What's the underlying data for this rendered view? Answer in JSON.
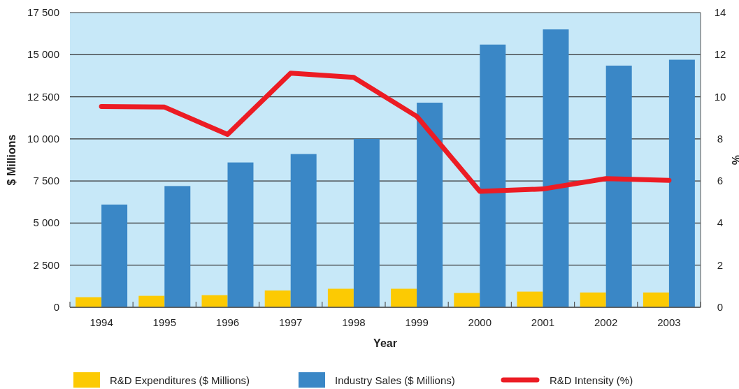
{
  "chart_data": {
    "type": "bar",
    "xlabel": "Year",
    "ylabel": "$ Millions",
    "y2label": "%",
    "categories": [
      "1994",
      "1995",
      "1996",
      "1997",
      "1998",
      "1999",
      "2000",
      "2001",
      "2002",
      "2003"
    ],
    "series": [
      {
        "name": "R&D Expenditures ($ Millions)",
        "color": "#fcca03",
        "values": [
          600,
          680,
          720,
          1000,
          1100,
          1100,
          850,
          930,
          880,
          880
        ]
      },
      {
        "name": "Industry Sales ($ Millions)",
        "color": "#3a87c6",
        "values": [
          6100,
          7200,
          8600,
          9100,
          10000,
          12150,
          15600,
          16500,
          14350,
          14700
        ]
      },
      {
        "name": "R&D Intensity (%)",
        "color": "#ec1c24",
        "type": "line",
        "axis": "y2",
        "values": [
          9.54,
          9.51,
          8.21,
          11.12,
          10.92,
          9.07,
          5.51,
          5.62,
          6.11,
          6.03
        ]
      }
    ],
    "ylim": [
      0,
      17500
    ],
    "yticks": [
      0,
      {
        "value": 2500,
        "label": "2 500"
      },
      {
        "value": 5000,
        "label": "5 000"
      },
      {
        "value": 7500,
        "label": "7 500"
      },
      {
        "value": 10000,
        "label": "10 000"
      },
      {
        "value": 12500,
        "label": "12 500"
      },
      {
        "value": 15000,
        "label": "15 000"
      },
      {
        "value": 17500,
        "label": "17 500"
      }
    ],
    "y2lim": [
      0,
      14
    ],
    "y2ticks": [
      0,
      2,
      4,
      6,
      8,
      10,
      12,
      14
    ],
    "grid": "y",
    "legend": "bottom",
    "marker": "none",
    "line_style": "solid"
  }
}
